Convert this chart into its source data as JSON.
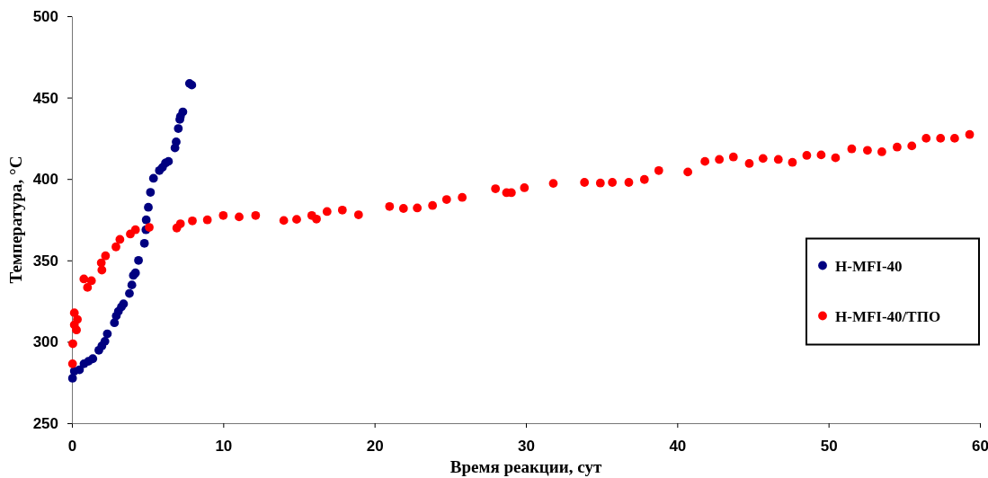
{
  "chart_data": {
    "type": "scatter",
    "xlabel": "Время реакции, сут",
    "ylabel": "Температура, °С",
    "xlim": [
      0,
      60
    ],
    "xticks": [
      0,
      10,
      20,
      30,
      40,
      50,
      60
    ],
    "ylim": [
      250,
      500
    ],
    "yticks": [
      250,
      300,
      350,
      400,
      450,
      500
    ],
    "grid": false,
    "legend": "right",
    "marker": "circle",
    "series": [
      {
        "name": "H-MFI-40",
        "color": "#000080",
        "x": [
          0.04,
          0.16,
          0.5,
          0.8,
          1.09,
          1.38,
          1.78,
          1.98,
          2.18,
          2.34,
          2.81,
          2.93,
          3.07,
          3.27,
          3.41,
          3.8,
          3.96,
          4.06,
          4.2,
          4.4,
          4.79,
          4.89,
          4.91,
          5.05,
          5.19,
          5.39,
          5.78,
          5.98,
          6.18,
          6.38,
          6.81,
          6.89,
          7.03,
          7.13,
          7.17,
          7.33,
          7.77,
          7.92
        ],
        "values": [
          277.6,
          282,
          282.8,
          286.5,
          288,
          289.6,
          294.8,
          297.5,
          300.3,
          304.9,
          311.7,
          315.9,
          318.7,
          321.4,
          323.3,
          329.7,
          334.9,
          340.8,
          342.3,
          350,
          360.5,
          368.8,
          374.9,
          382.6,
          391.8,
          400.4,
          405.2,
          407.1,
          409.8,
          410.8,
          419.1,
          422.8,
          431,
          436.6,
          438.4,
          441.2,
          458.7,
          457.7
        ]
      },
      {
        "name": "H-MFI-40/ТПО",
        "color": "#ff0000",
        "x": [
          0.04,
          0.06,
          0.16,
          0.36,
          0.16,
          0.3,
          0.79,
          1.03,
          1.29,
          1.98,
          1.94,
          2.22,
          2.91,
          3.17,
          3.86,
          4.2,
          5.11,
          6.93,
          7.17,
          7.96,
          8.95,
          10.0,
          11.05,
          12.14,
          14.0,
          14.85,
          15.85,
          16.16,
          16.86,
          17.87,
          18.94,
          20.99,
          21.91,
          22.82,
          23.83,
          24.76,
          25.79,
          27.99,
          28.72,
          29.04,
          29.9,
          31.81,
          33.87,
          34.92,
          35.71,
          36.8,
          37.83,
          38.78,
          40.7,
          41.83,
          42.78,
          43.71,
          44.76,
          45.67,
          46.68,
          47.61,
          48.56,
          49.51,
          50.46,
          51.53,
          52.57,
          53.52,
          54.53,
          55.5,
          56.45,
          57.4,
          58.33,
          59.32
        ],
        "values": [
          286.5,
          298.8,
          317.8,
          313.7,
          310.4,
          307.3,
          338.6,
          333.4,
          337.5,
          344.1,
          348.5,
          352.8,
          358.3,
          362.9,
          366.2,
          368.8,
          370.3,
          369.9,
          372.5,
          374.3,
          374.9,
          377.6,
          376.7,
          377.6,
          374.5,
          375.2,
          377.6,
          375.4,
          380,
          380.9,
          378,
          383.1,
          381.9,
          382.2,
          383.7,
          387.4,
          388.7,
          394,
          391.6,
          391.6,
          394.6,
          397.3,
          397.9,
          397.5,
          397.9,
          397.9,
          399.7,
          405.2,
          404.3,
          410.8,
          412,
          413.5,
          409.5,
          412.6,
          412,
          410.2,
          414.5,
          414.8,
          413,
          418.5,
          417.6,
          416.7,
          419.6,
          420.3,
          425,
          425,
          425,
          427.3
        ]
      }
    ]
  }
}
